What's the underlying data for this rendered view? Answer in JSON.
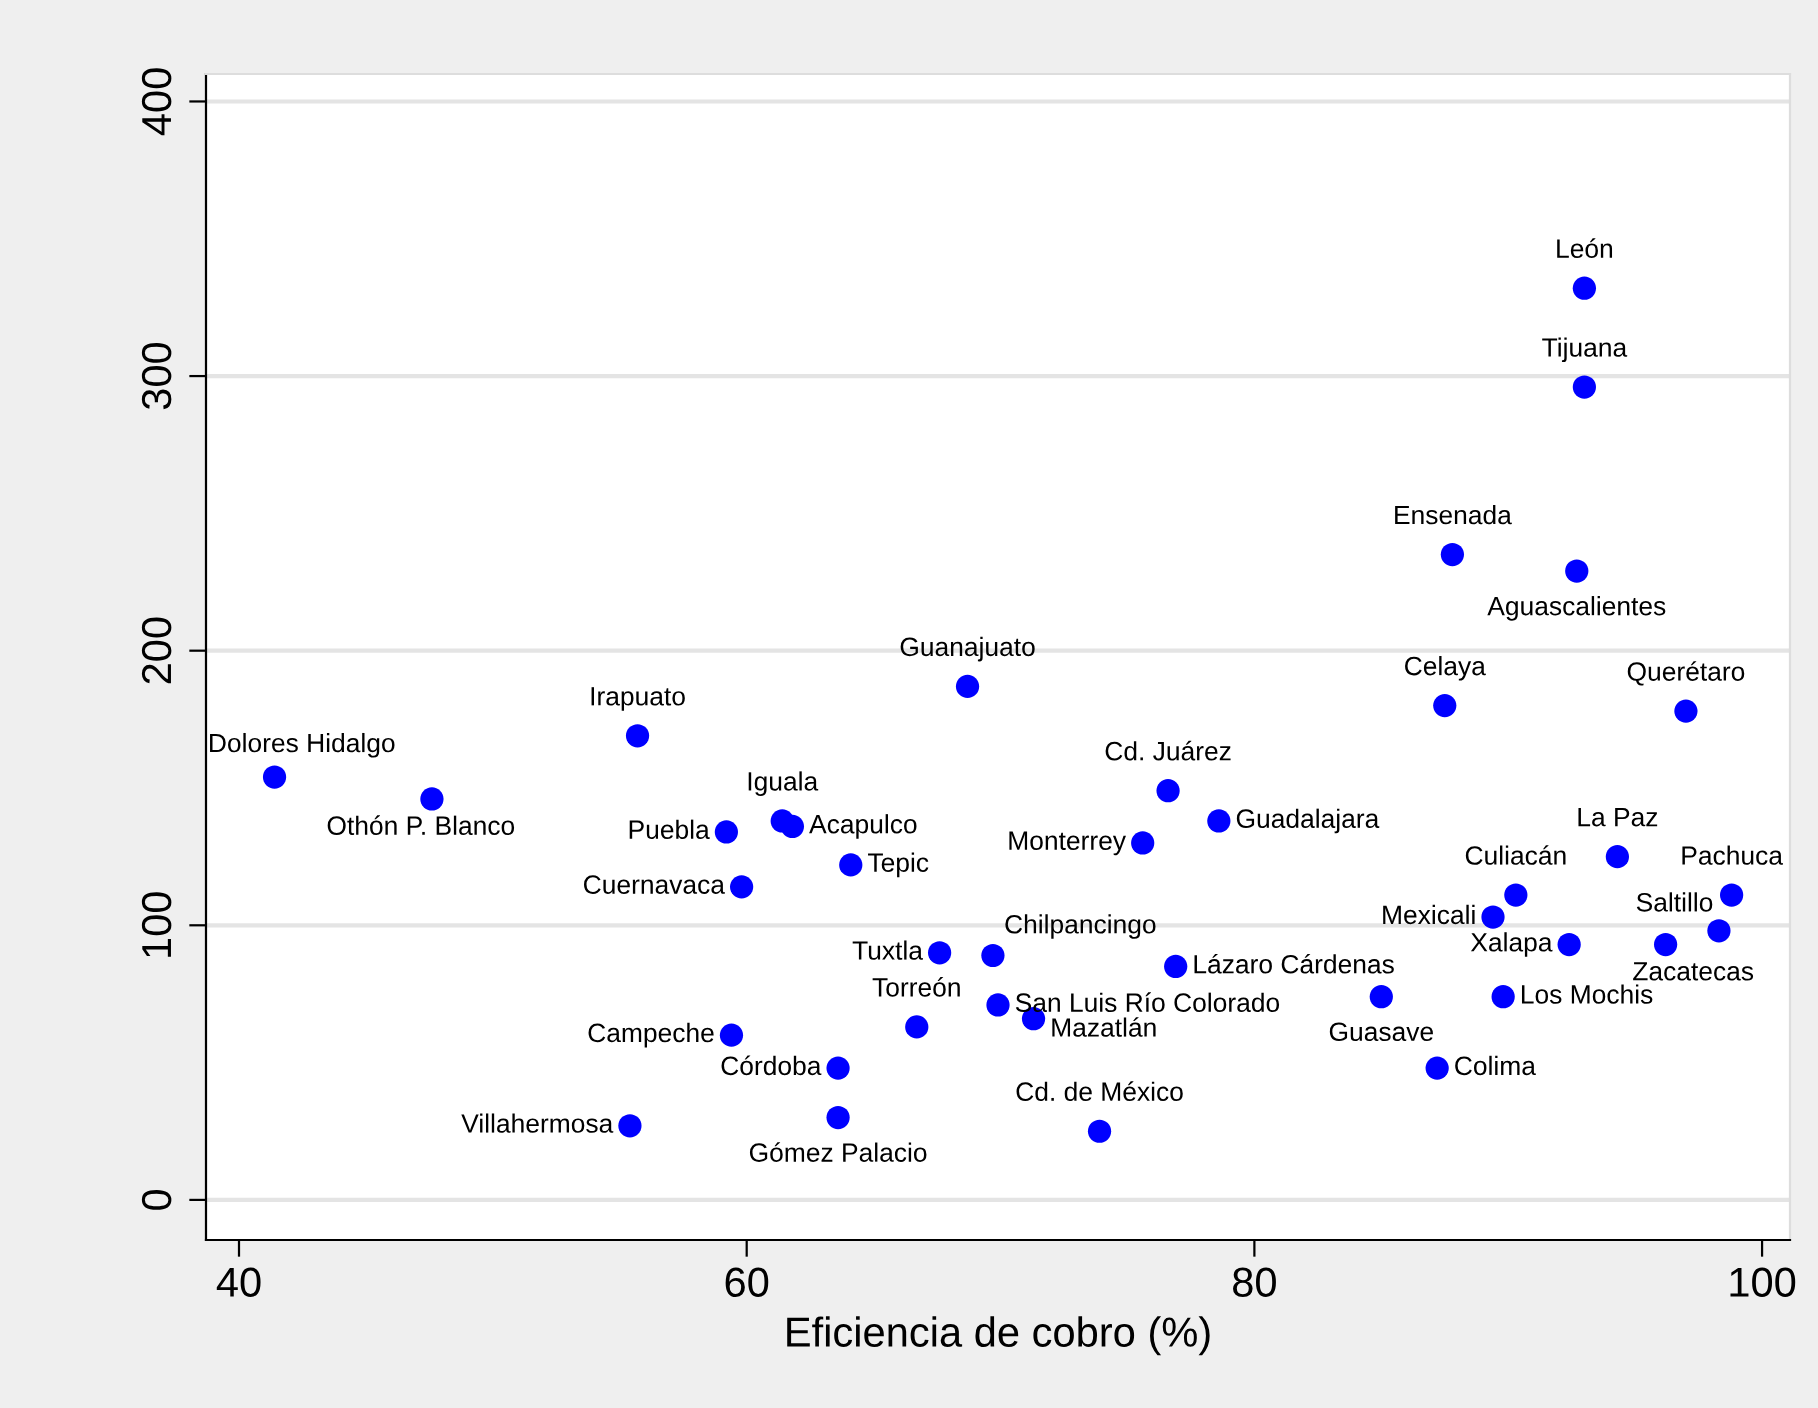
{
  "chart_data": {
    "type": "scatter",
    "xlabel": "Eficiencia de cobro (%)",
    "x": [
      93.0,
      93.0,
      87.8,
      92.7,
      87.5,
      97.0,
      68.7,
      55.7,
      41.4,
      47.6,
      59.2,
      61.4,
      61.8,
      64.1,
      59.8,
      76.6,
      78.6,
      75.6,
      94.3,
      90.3,
      89.4,
      98.8,
      98.3,
      92.4,
      96.2,
      67.6,
      69.7,
      76.9,
      69.9,
      71.3,
      66.7,
      85.0,
      89.8,
      87.2,
      59.4,
      63.6,
      55.4,
      63.6,
      73.9
    ],
    "series": [
      {
        "color": "#0000ff",
        "values": [
          332,
          296,
          235,
          229,
          180,
          178,
          187,
          169,
          154,
          146,
          134,
          138,
          136,
          122,
          114,
          149,
          138,
          130,
          125,
          111,
          103,
          111,
          98,
          93,
          93,
          90,
          89,
          85,
          71,
          66,
          63,
          74,
          74,
          48,
          60,
          48,
          27,
          30,
          25
        ]
      }
    ],
    "annotations": [
      {
        "text": "León",
        "x": 93.0,
        "y": 332
      },
      {
        "text": "Tijuana",
        "x": 93.0,
        "y": 296
      },
      {
        "text": "Ensenada",
        "x": 87.8,
        "y": 235
      },
      {
        "text": "Aguascalientes",
        "x": 92.7,
        "y": 229
      },
      {
        "text": "Celaya",
        "x": 87.5,
        "y": 180
      },
      {
        "text": "Querétaro",
        "x": 97.0,
        "y": 178
      },
      {
        "text": "Guanajuato",
        "x": 68.7,
        "y": 187
      },
      {
        "text": "Irapuato",
        "x": 55.7,
        "y": 169
      },
      {
        "text": "Dolores Hidalgo",
        "x": 41.4,
        "y": 154
      },
      {
        "text": "Othón P. Blanco",
        "x": 47.6,
        "y": 146
      },
      {
        "text": "Puebla",
        "x": 59.2,
        "y": 134
      },
      {
        "text": "Iguala",
        "x": 61.4,
        "y": 138
      },
      {
        "text": "Acapulco",
        "x": 61.8,
        "y": 136
      },
      {
        "text": "Tepic",
        "x": 64.1,
        "y": 122
      },
      {
        "text": "Cuernavaca",
        "x": 59.8,
        "y": 114
      },
      {
        "text": "Cd. Juárez",
        "x": 76.6,
        "y": 149
      },
      {
        "text": "Guadalajara",
        "x": 78.6,
        "y": 138
      },
      {
        "text": "Monterrey",
        "x": 75.6,
        "y": 130
      },
      {
        "text": "La Paz",
        "x": 94.3,
        "y": 125
      },
      {
        "text": "Culiacán",
        "x": 90.3,
        "y": 111
      },
      {
        "text": "Mexicali",
        "x": 89.4,
        "y": 103
      },
      {
        "text": "Pachuca",
        "x": 98.8,
        "y": 111
      },
      {
        "text": "Saltillo",
        "x": 98.3,
        "y": 98
      },
      {
        "text": "Xalapa",
        "x": 92.4,
        "y": 93
      },
      {
        "text": "Zacatecas",
        "x": 96.2,
        "y": 93
      },
      {
        "text": "Tuxtla",
        "x": 67.6,
        "y": 90
      },
      {
        "text": "Chilpancingo",
        "x": 69.7,
        "y": 89
      },
      {
        "text": "Lázaro Cárdenas",
        "x": 76.9,
        "y": 85
      },
      {
        "text": "San Luis Río Colorado",
        "x": 69.9,
        "y": 71
      },
      {
        "text": "Mazatlán",
        "x": 71.3,
        "y": 66
      },
      {
        "text": "Torreón",
        "x": 66.7,
        "y": 63
      },
      {
        "text": "Guasave",
        "x": 85.0,
        "y": 74
      },
      {
        "text": "Los Mochis",
        "x": 89.8,
        "y": 74
      },
      {
        "text": "Colima",
        "x": 87.2,
        "y": 48
      },
      {
        "text": "Campeche",
        "x": 59.4,
        "y": 60
      },
      {
        "text": "Córdoba",
        "x": 63.6,
        "y": 48
      },
      {
        "text": "Villahermosa",
        "x": 55.4,
        "y": 27
      },
      {
        "text": "Gómez Palacio",
        "x": 63.6,
        "y": 30
      },
      {
        "text": "Cd. de México",
        "x": 73.9,
        "y": 25
      }
    ],
    "xlim": [
      38.7,
      101.1
    ],
    "xticks": [
      40,
      60,
      80,
      100
    ],
    "ylim": [
      -14.6,
      410
    ],
    "yticks": [
      0,
      100,
      200,
      300,
      400
    ],
    "grid": "y",
    "legend": false,
    "marker": "circle"
  }
}
